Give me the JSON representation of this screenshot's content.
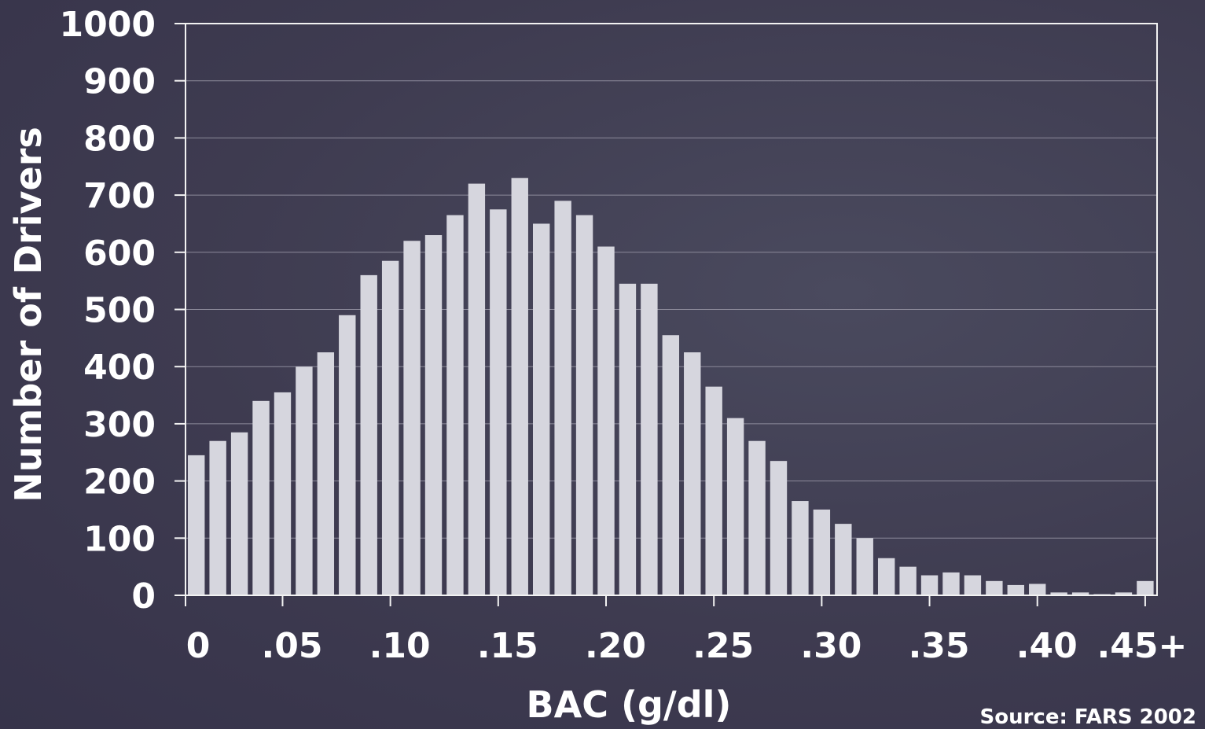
{
  "chart_data": {
    "type": "bar",
    "title": "",
    "xlabel": "BAC (g/dl)",
    "ylabel": "Number of Drivers",
    "source": "Source:  FARS 2002",
    "ylim": [
      0,
      1000
    ],
    "xlim": [
      0,
      0.46
    ],
    "grid": true,
    "x_ticks": [
      {
        "value": 0,
        "label": "0"
      },
      {
        "value": 0.05,
        "label": ".05"
      },
      {
        "value": 0.1,
        "label": ".10"
      },
      {
        "value": 0.15,
        "label": ".15"
      },
      {
        "value": 0.2,
        "label": ".20"
      },
      {
        "value": 0.25,
        "label": ".25"
      },
      {
        "value": 0.3,
        "label": ".30"
      },
      {
        "value": 0.35,
        "label": ".35"
      },
      {
        "value": 0.4,
        "label": ".40"
      },
      {
        "value": 0.45,
        "label": ".45+"
      }
    ],
    "y_ticks": [
      0,
      100,
      200,
      300,
      400,
      500,
      600,
      700,
      800,
      900,
      1000
    ],
    "x": [
      0.01,
      0.02,
      0.03,
      0.04,
      0.05,
      0.06,
      0.07,
      0.08,
      0.09,
      0.1,
      0.11,
      0.12,
      0.13,
      0.14,
      0.15,
      0.16,
      0.17,
      0.18,
      0.19,
      0.2,
      0.21,
      0.22,
      0.23,
      0.24,
      0.25,
      0.26,
      0.27,
      0.28,
      0.29,
      0.3,
      0.31,
      0.32,
      0.33,
      0.34,
      0.35,
      0.36,
      0.37,
      0.38,
      0.39,
      0.4,
      0.41,
      0.42,
      0.43,
      0.44,
      0.45
    ],
    "values": [
      245,
      270,
      285,
      340,
      355,
      400,
      425,
      490,
      560,
      585,
      620,
      630,
      665,
      720,
      675,
      730,
      650,
      690,
      665,
      610,
      545,
      545,
      455,
      425,
      365,
      310,
      270,
      235,
      165,
      150,
      125,
      100,
      65,
      50,
      35,
      40,
      35,
      25,
      18,
      20,
      5,
      5,
      2,
      5,
      25
    ],
    "colors": {
      "bar": "#d6d6de",
      "background": "#403d52",
      "text": "#ffffff"
    }
  }
}
